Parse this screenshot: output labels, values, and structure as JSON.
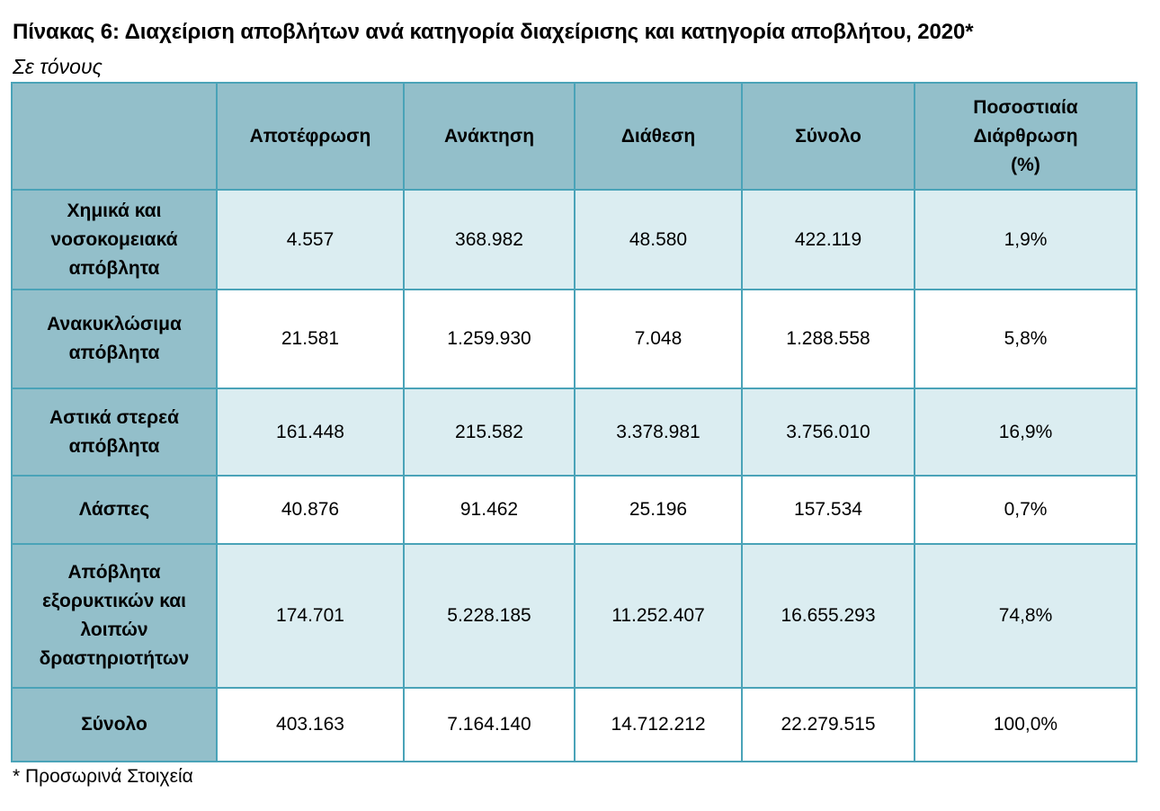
{
  "title": "Πίνακας 6: Διαχείριση αποβλήτων ανά κατηγορία διαχείρισης και κατηγορία αποβλήτου, 2020*",
  "subtitle": "Σε τόνους",
  "table": {
    "corner": "",
    "columns": [
      "Αποτέφρωση",
      "Ανάκτηση",
      "Διάθεση",
      "Σύνολο",
      "Ποσοστιαία Διάρθρωση (%)"
    ],
    "rows": [
      {
        "label": "Χημικά και νοσοκομειακά απόβλητα",
        "values": [
          "4.557",
          "368.982",
          "48.580",
          "422.119",
          "1,9%"
        ]
      },
      {
        "label": "Ανακυκλώσιμα απόβλητα",
        "values": [
          "21.581",
          "1.259.930",
          "7.048",
          "1.288.558",
          "5,8%"
        ]
      },
      {
        "label": "Αστικά στερεά απόβλητα",
        "values": [
          "161.448",
          "215.582",
          "3.378.981",
          "3.756.010",
          "16,9%"
        ]
      },
      {
        "label": "Λάσπες",
        "values": [
          "40.876",
          "91.462",
          "25.196",
          "157.534",
          "0,7%"
        ]
      },
      {
        "label": "Απόβλητα εξορυκτικών και λοιπών δραστηριοτήτων",
        "values": [
          "174.701",
          "5.228.185",
          "11.252.407",
          "16.655.293",
          "74,8%"
        ]
      },
      {
        "label": "Σύνολο",
        "values": [
          "403.163",
          "7.164.140",
          "14.712.212",
          "22.279.515",
          "100,0%"
        ]
      }
    ]
  },
  "footnote": "* Προσωρινά Στοιχεία",
  "colors": {
    "header_fill": "#93bfca",
    "shaded_row_fill": "#dbedf1",
    "border": "#4aa3b8"
  }
}
